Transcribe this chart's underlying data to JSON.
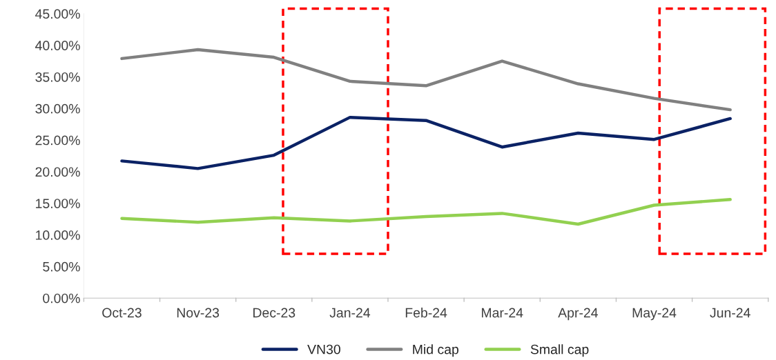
{
  "chart_data": {
    "type": "line",
    "categories": [
      "Oct-23",
      "Nov-23",
      "Dec-23",
      "Jan-24",
      "Feb-24",
      "Mar-24",
      "Apr-24",
      "May-24",
      "Jun-24"
    ],
    "series": [
      {
        "name": "VN30",
        "color": "#0b2265",
        "values": [
          21.7,
          20.5,
          22.6,
          28.6,
          28.1,
          23.9,
          26.1,
          25.1,
          28.4
        ]
      },
      {
        "name": "Mid cap",
        "color": "#808080",
        "values": [
          37.9,
          39.3,
          38.1,
          34.3,
          33.6,
          37.5,
          33.9,
          31.6,
          29.8
        ]
      },
      {
        "name": "Small cap",
        "color": "#92d050",
        "values": [
          12.6,
          12.0,
          12.7,
          12.2,
          12.9,
          13.4,
          11.7,
          14.7,
          15.6
        ]
      }
    ],
    "ylim": [
      0,
      45
    ],
    "yticks": [
      {
        "value": 0,
        "label": "0.00%"
      },
      {
        "value": 5,
        "label": "5.00%"
      },
      {
        "value": 10,
        "label": "10.00%"
      },
      {
        "value": 15,
        "label": "15.00%"
      },
      {
        "value": 20,
        "label": "20.00%"
      },
      {
        "value": 25,
        "label": "25.00%"
      },
      {
        "value": 30,
        "label": "30.00%"
      },
      {
        "value": 35,
        "label": "35.00%"
      },
      {
        "value": 40,
        "label": "40.00%"
      },
      {
        "value": 45,
        "label": "45.00%"
      }
    ],
    "grid": false,
    "legend": "bottom",
    "marker": "none",
    "line_style": "solid"
  }
}
